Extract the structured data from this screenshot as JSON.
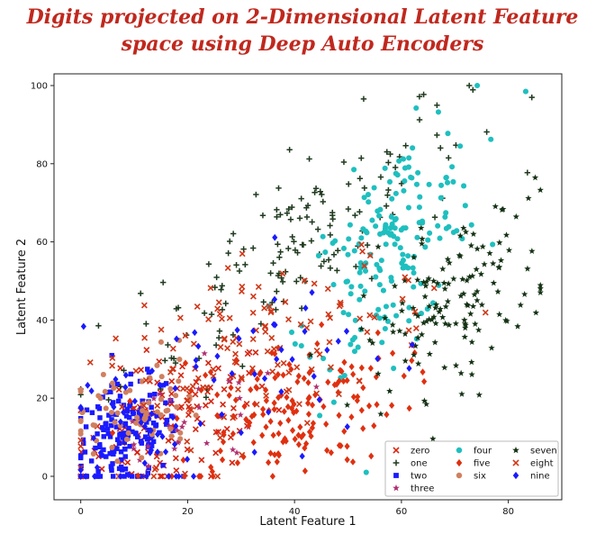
{
  "title_lines": [
    "Digits projected on 2-Dimensional Latent Feature",
    "space using Deep Auto Encoders"
  ],
  "chart_data": {
    "type": "scatter",
    "title": "Digits projected on 2-Dimensional Latent Feature space using Deep Auto Encoders",
    "xlabel": "Latent Feature 1",
    "ylabel": "Latent Feature 2",
    "xlim": [
      -5,
      90
    ],
    "ylim": [
      -6,
      103
    ],
    "xticks": [
      0,
      20,
      40,
      60,
      80
    ],
    "yticks": [
      0,
      20,
      40,
      60,
      80,
      100
    ],
    "grid": false,
    "legend_position": "lower-right",
    "legend_columns": [
      [
        "zero",
        "one",
        "two",
        "three"
      ],
      [
        "four",
        "five",
        "six"
      ],
      [
        "seven",
        "eight",
        "nine"
      ]
    ],
    "series": [
      {
        "name": "zero",
        "marker": "x",
        "color": "#d62612",
        "center": [
          18,
          14
        ],
        "spread": [
          9,
          9
        ],
        "count": 110,
        "corr": 0.4
      },
      {
        "name": "one",
        "marker": "plus",
        "color": "#1f3a1f",
        "center": [
          40,
          60
        ],
        "spread": [
          16,
          18
        ],
        "count": 150,
        "corr": 0.8
      },
      {
        "name": "two",
        "marker": "square",
        "color": "#1a1aff",
        "center": [
          8,
          10
        ],
        "spread": [
          5,
          7
        ],
        "count": 160,
        "corr": 0.3
      },
      {
        "name": "three",
        "marker": "star",
        "color": "#b03070",
        "center": [
          20,
          12
        ],
        "spread": [
          10,
          8
        ],
        "count": 35,
        "corr": 0.3
      },
      {
        "name": "four",
        "marker": "circle",
        "color": "#1fbfbf",
        "center": [
          58,
          58
        ],
        "spread": [
          8,
          16
        ],
        "count": 180,
        "corr": 0.6
      },
      {
        "name": "five",
        "marker": "diamond",
        "color": "#e03010",
        "center": [
          38,
          17
        ],
        "spread": [
          11,
          9
        ],
        "count": 170,
        "corr": 0.3
      },
      {
        "name": "six",
        "marker": "circle",
        "color": "#d08060",
        "center": [
          10,
          16
        ],
        "spread": [
          6,
          8
        ],
        "count": 70,
        "corr": 0.3
      },
      {
        "name": "seven",
        "marker": "star",
        "color": "#143214",
        "center": [
          70,
          45
        ],
        "spread": [
          9,
          12
        ],
        "count": 140,
        "corr": 0.5
      },
      {
        "name": "eight",
        "marker": "x",
        "color": "#d03818",
        "center": [
          34,
          32
        ],
        "spread": [
          16,
          14
        ],
        "count": 140,
        "corr": 0.6
      },
      {
        "name": "nine",
        "marker": "diamond",
        "color": "#1a1aff",
        "center": [
          18,
          16
        ],
        "spread": [
          16,
          16
        ],
        "count": 90,
        "corr": 0.5
      }
    ]
  }
}
